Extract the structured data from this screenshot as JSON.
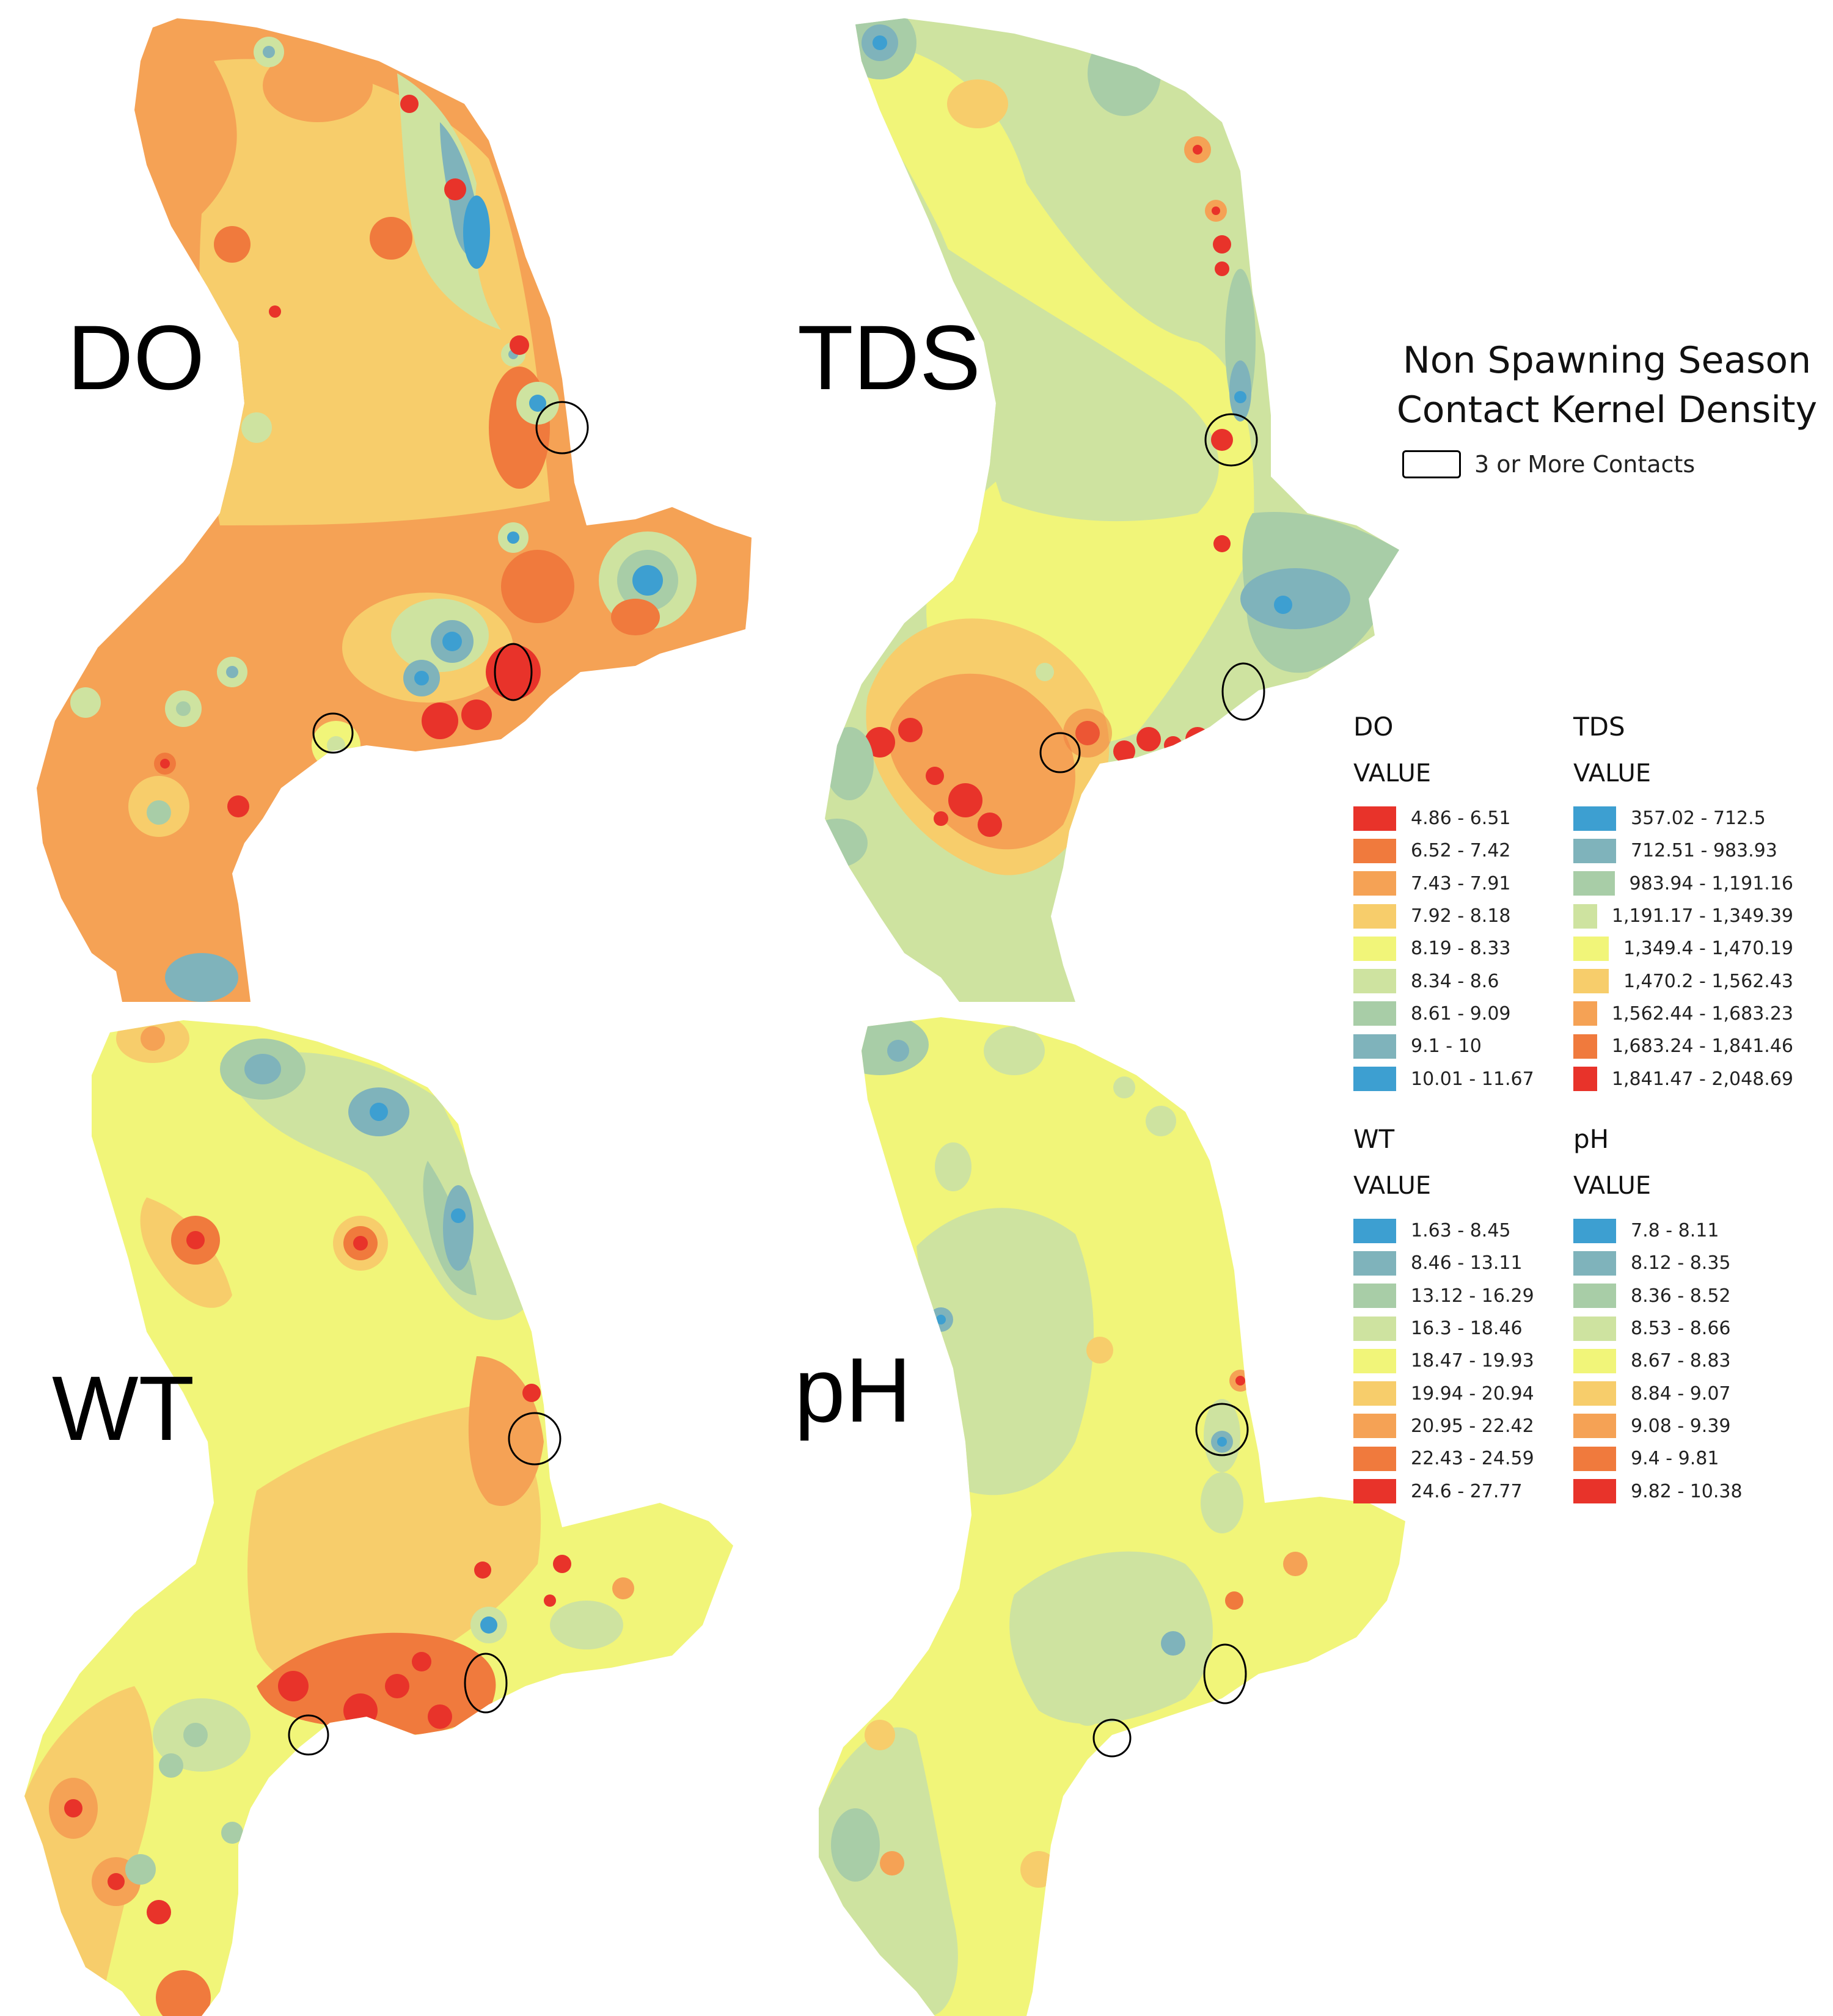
{
  "legend": {
    "title_line1": "Non Spawning Season",
    "title_line2": "Contact Kernel Density",
    "contact_label": "3 or More Contacts",
    "value_header": "VALUE",
    "ramp_colors": [
      "#e8332a",
      "#f07a3d",
      "#f5a255",
      "#f7cd6b",
      "#f1f579",
      "#cee3a0",
      "#a8cda7",
      "#7fb3bb",
      "#3d9fd1"
    ]
  },
  "maps": {
    "do": {
      "title": "DO",
      "ranges": [
        "4.86 - 6.51",
        "6.52 - 7.42",
        "7.43 - 7.91",
        "7.92 - 8.18",
        "8.19 - 8.33",
        "8.34 - 8.6",
        "8.61 - 9.09",
        "9.1 - 10",
        "10.01 - 11.67"
      ],
      "swatch_order": [
        "#e8332a",
        "#f07a3d",
        "#f5a255",
        "#f7cd6b",
        "#f1f579",
        "#cee3a0",
        "#a8cda7",
        "#7fb3bb",
        "#3d9fd1"
      ]
    },
    "tds": {
      "title": "TDS",
      "ranges": [
        "357.02 - 712.5",
        "712.51 - 983.93",
        "983.94 - 1,191.16",
        "1,191.17 - 1,349.39",
        "1,349.4 - 1,470.19",
        "1,470.2 - 1,562.43",
        "1,562.44 - 1,683.23",
        "1,683.24 - 1,841.46",
        "1,841.47 - 2,048.69"
      ],
      "swatch_order": [
        "#3d9fd1",
        "#7fb3bb",
        "#a8cda7",
        "#cee3a0",
        "#f1f579",
        "#f7cd6b",
        "#f5a255",
        "#f07a3d",
        "#e8332a"
      ]
    },
    "wt": {
      "title": "WT",
      "ranges": [
        "1.63 - 8.45",
        "8.46 - 13.11",
        "13.12 - 16.29",
        "16.3 - 18.46",
        "18.47 - 19.93",
        "19.94 - 20.94",
        "20.95 - 22.42",
        "22.43 - 24.59",
        "24.6 - 27.77"
      ],
      "swatch_order": [
        "#3d9fd1",
        "#7fb3bb",
        "#a8cda7",
        "#cee3a0",
        "#f1f579",
        "#f7cd6b",
        "#f5a255",
        "#f07a3d",
        "#e8332a"
      ]
    },
    "ph": {
      "title": "pH",
      "ranges": [
        "7.8 - 8.11",
        "8.12 - 8.35",
        "8.36 - 8.52",
        "8.53 - 8.66",
        "8.67 - 8.83",
        "8.84 - 9.07",
        "9.08 - 9.39",
        "9.4 - 9.81",
        "9.82 - 10.38"
      ],
      "swatch_order": [
        "#3d9fd1",
        "#7fb3bb",
        "#a8cda7",
        "#cee3a0",
        "#f1f579",
        "#f7cd6b",
        "#f5a255",
        "#f07a3d",
        "#e8332a"
      ]
    }
  }
}
